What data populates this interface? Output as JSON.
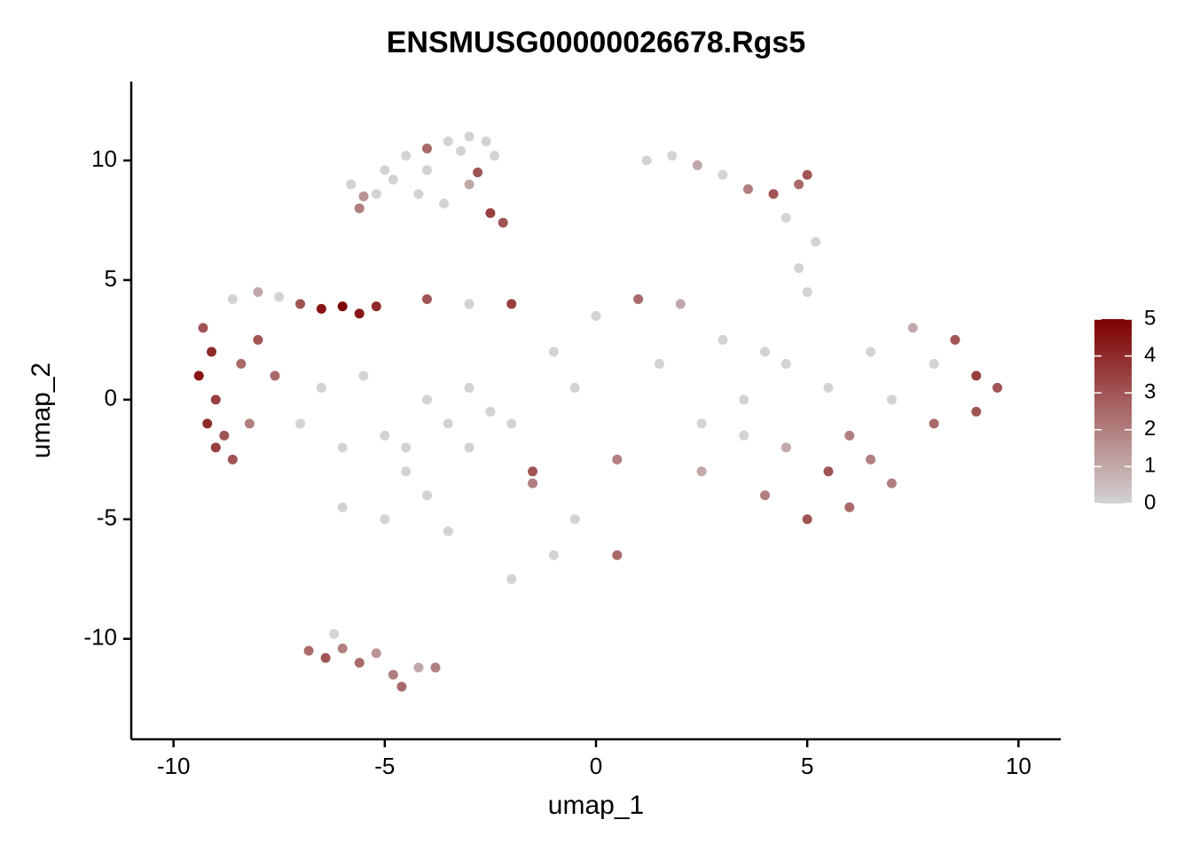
{
  "chart_data": {
    "type": "scatter",
    "title": "ENSMUSG00000026678.Rgs5",
    "xlabel": "umap_1",
    "ylabel": "umap_2",
    "xlim": [
      -11,
      11
    ],
    "ylim": [
      -14.2,
      13.3
    ],
    "xticks": [
      -10,
      -5,
      0,
      5,
      10
    ],
    "yticks": [
      -10,
      -5,
      0,
      5,
      10
    ],
    "x": [
      -5.8,
      -5.5,
      -5.0,
      -4.5,
      -4.0,
      -3.5,
      -3.0,
      -2.6,
      -2.4,
      -2.8,
      -4.2,
      -3.6,
      -5.6,
      -2.5,
      -3.2,
      -4.8,
      -5.2,
      -3.0,
      -2.2,
      -4.0,
      1.2,
      1.8,
      2.4,
      3.0,
      3.6,
      4.2,
      4.8,
      5.0,
      4.5,
      5.2,
      -9.3,
      -9.1,
      -9.4,
      -9.0,
      -9.2,
      -8.8,
      -9.0,
      -8.6,
      -8.4,
      -8.2,
      -8.6,
      -8.0,
      -7.5,
      -7.0,
      -6.5,
      -6.0,
      -5.6,
      -5.2,
      -8.0,
      -7.6,
      -7.0,
      -6.5,
      -6.0,
      -5.5,
      -5.0,
      -4.5,
      -4.0,
      -3.5,
      -3.0,
      -2.5,
      -6.0,
      -5.0,
      -4.5,
      -4.0,
      -3.0,
      -2.0,
      -1.5,
      -1.0,
      -2.0,
      -3.5,
      -1.0,
      0.0,
      1.0,
      2.0,
      -0.5,
      1.5,
      2.5,
      0.5,
      -1.5,
      -2.0,
      -3.0,
      -4.0,
      3.0,
      2.5,
      3.5,
      4.5,
      5.0,
      4.8,
      0.5,
      -0.5,
      4.0,
      5.0,
      6.0,
      7.0,
      8.0,
      9.0,
      9.5,
      8.5,
      7.5,
      6.5,
      5.5,
      4.5,
      6.0,
      7.0,
      8.0,
      3.5,
      4.0,
      5.5,
      6.5,
      9.0,
      -6.8,
      -6.4,
      -6.0,
      -5.6,
      -5.2,
      -6.2,
      -4.8,
      -4.2,
      -3.8,
      -4.6
    ],
    "y": [
      9.0,
      8.5,
      9.6,
      10.2,
      10.5,
      10.8,
      11.0,
      10.8,
      10.2,
      9.5,
      8.6,
      8.2,
      8.0,
      7.8,
      10.4,
      9.2,
      8.6,
      9.0,
      7.4,
      9.6,
      10.0,
      10.2,
      9.8,
      9.4,
      8.8,
      8.6,
      9.0,
      9.4,
      7.6,
      6.6,
      3.0,
      2.0,
      1.0,
      0.0,
      -1.0,
      -1.5,
      -2.0,
      -2.5,
      1.5,
      -1.0,
      4.2,
      4.5,
      4.3,
      4.0,
      3.8,
      3.9,
      3.6,
      3.9,
      2.5,
      1.0,
      -1.0,
      0.5,
      -2.0,
      1.0,
      -1.5,
      -3.0,
      0.0,
      -1.0,
      0.5,
      -0.5,
      -4.5,
      -5.0,
      -2.0,
      -4.0,
      -2.0,
      -1.0,
      -3.5,
      -6.5,
      -7.5,
      -5.5,
      2.0,
      3.5,
      4.2,
      4.0,
      0.5,
      1.5,
      -1.0,
      -2.5,
      -3.0,
      4.0,
      4.0,
      4.2,
      2.5,
      -3.0,
      0.0,
      1.5,
      4.5,
      5.5,
      -6.5,
      -5.0,
      -4.0,
      -5.0,
      -4.5,
      -3.5,
      -1.0,
      1.0,
      0.5,
      2.5,
      3.0,
      2.0,
      0.5,
      -2.0,
      -1.5,
      0.0,
      1.5,
      -1.5,
      2.0,
      -3.0,
      -2.5,
      -0.5,
      -10.5,
      -10.8,
      -10.4,
      -11.0,
      -10.6,
      -9.8,
      -11.5,
      -11.2,
      -11.2,
      -12.0
    ],
    "expression": [
      0,
      1.5,
      0,
      0,
      2.5,
      0,
      0,
      0,
      0,
      3,
      0,
      0,
      2,
      3.5,
      0,
      0,
      0,
      1,
      3,
      0,
      0,
      0,
      1,
      0,
      2,
      3,
      2.5,
      3,
      0,
      0,
      3,
      4,
      4.5,
      3.5,
      4,
      3,
      3.5,
      3,
      2.5,
      2,
      0,
      1,
      0,
      3,
      4.5,
      5,
      4.5,
      4,
      3,
      2.5,
      0,
      0,
      0,
      0,
      0,
      0,
      0,
      0,
      0,
      0,
      0,
      0,
      0,
      0,
      0,
      0,
      2,
      0,
      0,
      0,
      0,
      0,
      2.5,
      1,
      0,
      0,
      0,
      2,
      3,
      3.5,
      0,
      3,
      0,
      1,
      0,
      0,
      0,
      0,
      2.5,
      0,
      2,
      3,
      2.5,
      2,
      2.5,
      3.5,
      3,
      3,
      1,
      0,
      0,
      1,
      2,
      0,
      0,
      0,
      0,
      3,
      2,
      3,
      2.5,
      3,
      2,
      2.5,
      1.5,
      0,
      2,
      1,
      2,
      2.5
    ],
    "color_scale": {
      "low": "#d3d3d3",
      "high": "#7f0000",
      "lim": [
        0,
        5
      ],
      "ticks": [
        0,
        1,
        2,
        3,
        4,
        5
      ]
    }
  }
}
